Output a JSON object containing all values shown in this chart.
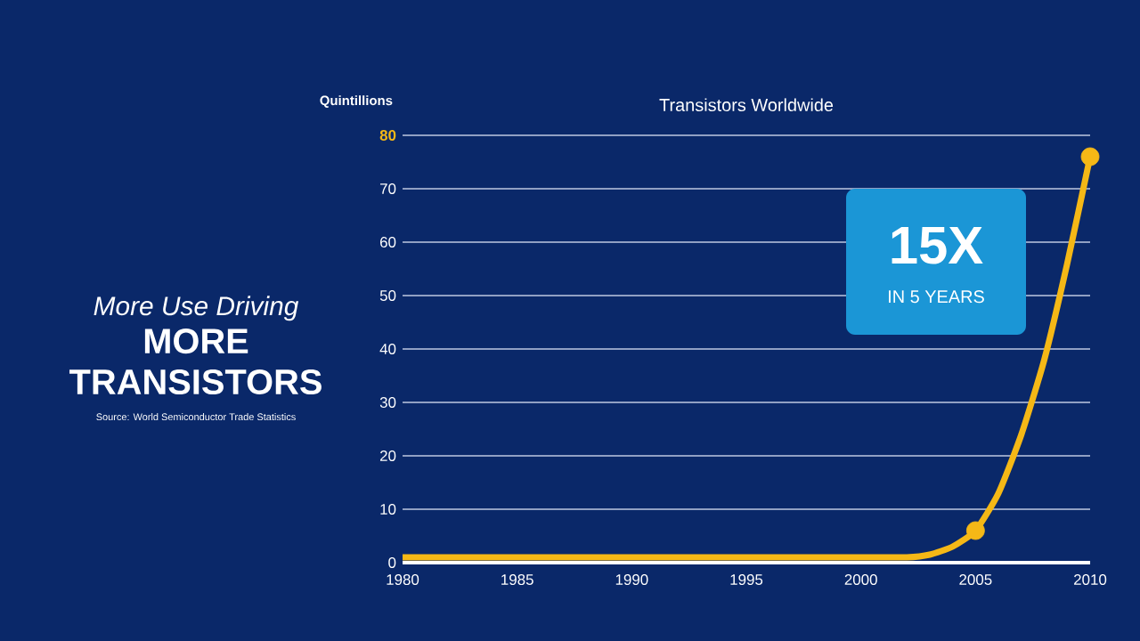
{
  "chart_data": {
    "type": "line",
    "title": "Transistors Worldwide",
    "ylabel": "Quintillions",
    "annotations": [
      "More Use Driving",
      "MORE TRANSISTORS",
      "Source: World Semiconductor Trade Statistics",
      "15X",
      "IN 5 YEARS"
    ],
    "series": [
      {
        "color": "#f5b816",
        "marker": "none",
        "x": [
          1980,
          1985,
          1990,
          1995,
          2000,
          2002,
          2003,
          2004,
          2005,
          2006,
          2007,
          2008,
          2009,
          2010
        ],
        "values": [
          1,
          1,
          1,
          1,
          1,
          1,
          1.5,
          3,
          6,
          13,
          24,
          38,
          56,
          76
        ]
      },
      {
        "type": "scatter",
        "color": "#f5b816",
        "marker": "circle",
        "x": [
          2005,
          2010
        ],
        "values": [
          6,
          76
        ]
      }
    ],
    "xlim": [
      1980,
      2010
    ],
    "xticks": [
      1980,
      1985,
      1990,
      1995,
      2000,
      2005,
      2010
    ],
    "ylim": [
      0,
      80
    ],
    "yticks": [
      0,
      10,
      20,
      30,
      40,
      50,
      60,
      70,
      80
    ],
    "grid": "y"
  }
}
